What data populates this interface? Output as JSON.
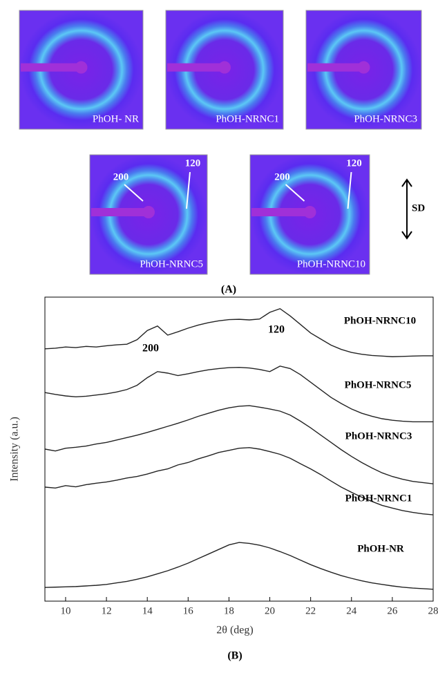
{
  "panel_a": {
    "images": [
      {
        "label": "PhOH- NR"
      },
      {
        "label": "PhOH-NRNC1"
      },
      {
        "label": "PhOH-NRNC3"
      },
      {
        "label": "PhOH-NRNC5",
        "inner": "200",
        "outer": "120"
      },
      {
        "label": "PhOH-NRNC10",
        "inner": "200",
        "outer": "120"
      }
    ],
    "direction": "SD",
    "caption": "(A)"
  },
  "chart_data": {
    "type": "line",
    "caption": "(B)",
    "x_label": "2θ (deg)",
    "y_label": "Intensity (a.u.)",
    "xlim": [
      9,
      28
    ],
    "ylim": [
      0,
      100
    ],
    "xticks": [
      10,
      12,
      14,
      16,
      18,
      20,
      22,
      24,
      26,
      28
    ],
    "annotations": [
      "200",
      "120"
    ],
    "x": [
      9,
      9.5,
      10,
      10.5,
      11,
      11.5,
      12,
      12.5,
      13,
      13.5,
      14,
      14.5,
      15,
      15.5,
      16,
      16.5,
      17,
      17.5,
      18,
      18.5,
      19,
      19.5,
      20,
      20.5,
      21,
      21.5,
      22,
      22.5,
      23,
      23.5,
      24,
      24.5,
      25,
      25.5,
      26,
      26.5,
      27,
      27.5,
      28
    ],
    "series": [
      {
        "name": "PhOH-NR",
        "color": "#222222",
        "values": [
          4.5,
          4.6,
          4.7,
          4.8,
          5,
          5.2,
          5.5,
          6,
          6.5,
          7.2,
          8,
          9,
          10,
          11.2,
          12.5,
          14,
          15.5,
          17,
          18.5,
          19.3,
          19,
          18.4,
          17.5,
          16.3,
          15,
          13.5,
          12,
          10.7,
          9.5,
          8.4,
          7.5,
          6.7,
          6,
          5.5,
          5,
          4.6,
          4.3,
          4.1,
          3.9
        ]
      },
      {
        "name": "PhOH-NRNC1",
        "color": "#222222",
        "values": [
          37.5,
          37.2,
          38,
          37.6,
          38.3,
          38.8,
          39.2,
          39.8,
          40.5,
          41,
          41.8,
          42.8,
          43.5,
          44.8,
          45.6,
          46.8,
          47.8,
          48.9,
          49.6,
          50.3,
          50.5,
          50,
          49.2,
          48.3,
          47,
          45.2,
          43.5,
          41.6,
          39.5,
          37.5,
          35.8,
          34.2,
          32.8,
          31.5,
          30.6,
          29.8,
          29.2,
          28.7,
          28.4
        ]
      },
      {
        "name": "PhOH-NRNC3",
        "color": "#222222",
        "values": [
          50,
          49.4,
          50.3,
          50.6,
          51,
          51.7,
          52.2,
          53,
          53.8,
          54.6,
          55.5,
          56.5,
          57.5,
          58.5,
          59.6,
          60.8,
          61.8,
          62.8,
          63.6,
          64.1,
          64.3,
          63.8,
          63.2,
          62.5,
          61.2,
          59.2,
          57,
          54.6,
          52.2,
          49.8,
          47.6,
          45.6,
          43.8,
          42.2,
          41,
          40.1,
          39.4,
          39,
          38.6
        ]
      },
      {
        "name": "PhOH-NRNC5",
        "color": "#222222",
        "values": [
          68.6,
          68,
          67.5,
          67.2,
          67.4,
          67.8,
          68.2,
          68.8,
          69.6,
          71,
          73.5,
          75.5,
          75,
          74.2,
          74.8,
          75.5,
          76.1,
          76.5,
          76.8,
          76.9,
          76.7,
          76.2,
          75.5,
          77.3,
          76.5,
          74.5,
          72,
          69.5,
          67,
          65,
          63.2,
          61.8,
          60.8,
          60,
          59.5,
          59.2,
          59,
          59,
          59
        ]
      },
      {
        "name": "PhOH-NRNC10",
        "color": "#222222",
        "values": [
          83,
          83.2,
          83.6,
          83.4,
          83.8,
          83.6,
          84,
          84.3,
          84.5,
          86,
          89,
          90.5,
          87.5,
          88.6,
          89.8,
          90.8,
          91.6,
          92.2,
          92.6,
          92.7,
          92.5,
          92.8,
          95,
          96.2,
          93.8,
          91,
          88.2,
          86.2,
          84.2,
          82.8,
          81.8,
          81.2,
          80.8,
          80.6,
          80.4,
          80.5,
          80.6,
          80.7,
          80.7
        ]
      }
    ]
  }
}
